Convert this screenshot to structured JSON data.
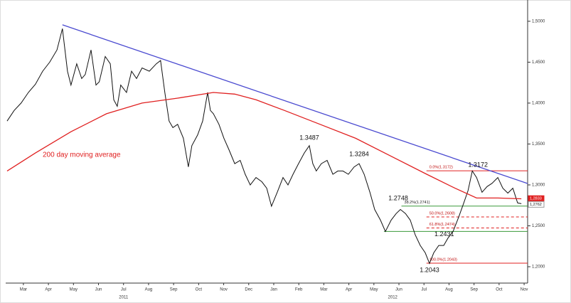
{
  "chart_data": {
    "type": "line",
    "xlim": [
      -0.65,
      20.14
    ],
    "ylim": [
      1.18,
      1.526
    ],
    "xticks": [
      {
        "value": 0,
        "label": "Mar"
      },
      {
        "value": 1,
        "label": "Apr"
      },
      {
        "value": 2,
        "label": "May"
      },
      {
        "value": 3,
        "label": "Jun"
      },
      {
        "value": 4,
        "label": "Jul"
      },
      {
        "value": 5,
        "label": "Aug"
      },
      {
        "value": 6,
        "label": "Sep"
      },
      {
        "value": 7,
        "label": "Oct"
      },
      {
        "value": 8,
        "label": "Nov"
      },
      {
        "value": 9,
        "label": "Dec"
      },
      {
        "value": 10,
        "label": "Jan"
      },
      {
        "value": 11,
        "label": "Feb"
      },
      {
        "value": 12,
        "label": "Mar"
      },
      {
        "value": 13,
        "label": "Apr"
      },
      {
        "value": 14,
        "label": "May"
      },
      {
        "value": 15,
        "label": "Jun"
      },
      {
        "value": 16,
        "label": "Jul"
      },
      {
        "value": 17,
        "label": "Aug"
      },
      {
        "value": 18,
        "label": "Sep"
      },
      {
        "value": 19,
        "label": "Oct"
      },
      {
        "value": 20,
        "label": "Nov"
      }
    ],
    "years": [
      {
        "value": 4,
        "label": "2011"
      },
      {
        "value": 14.75,
        "label": "2012"
      }
    ],
    "yticks": [
      {
        "value": 1.5,
        "label": "1,5000"
      },
      {
        "value": 1.45,
        "label": "1,4500"
      },
      {
        "value": 1.4,
        "label": "1,4000"
      },
      {
        "value": 1.35,
        "label": "1,3500"
      },
      {
        "value": 1.3,
        "label": "1,3000"
      },
      {
        "value": 1.25,
        "label": "1,2500"
      },
      {
        "value": 1.2,
        "label": "1,2000"
      }
    ],
    "series": [
      {
        "color": "#111111",
        "x": [
          -0.65,
          -0.37,
          -0.09,
          0.2,
          0.48,
          0.77,
          1.05,
          1.34,
          1.56,
          1.76,
          1.9,
          2.13,
          2.33,
          2.47,
          2.7,
          2.9,
          3.03,
          3.27,
          3.47,
          3.61,
          3.75,
          3.89,
          4.12,
          4.32,
          4.52,
          4.74,
          5.03,
          5.31,
          5.48,
          5.65,
          5.82,
          5.97,
          6.16,
          6.39,
          6.59,
          6.73,
          6.96,
          7.16,
          7.36,
          7.47,
          7.59,
          7.81,
          8.01,
          8.21,
          8.44,
          8.66,
          8.86,
          9.06,
          9.29,
          9.52,
          9.72,
          9.91,
          10.14,
          10.37,
          10.57,
          10.77,
          10.99,
          11.22,
          11.42,
          11.56,
          11.7,
          11.9,
          12.13,
          12.36,
          12.56,
          12.76,
          12.98,
          13.21,
          13.41,
          13.61,
          13.84,
          14.03,
          14.26,
          14.46,
          14.69,
          14.89,
          15.06,
          15.26,
          15.45,
          15.65,
          15.85,
          16.05,
          16.22,
          16.39,
          16.59,
          16.79,
          16.96,
          17.16,
          17.39,
          17.59,
          17.76,
          17.93,
          18.1,
          18.32,
          18.52,
          18.72,
          18.95,
          19.15,
          19.35,
          19.55,
          19.74,
          19.89
        ],
        "values": [
          1.378,
          1.391,
          1.4,
          1.413,
          1.423,
          1.439,
          1.45,
          1.465,
          1.491,
          1.439,
          1.422,
          1.448,
          1.43,
          1.435,
          1.465,
          1.422,
          1.426,
          1.457,
          1.448,
          1.404,
          1.396,
          1.422,
          1.413,
          1.439,
          1.43,
          1.443,
          1.439,
          1.448,
          1.452,
          1.413,
          1.378,
          1.37,
          1.374,
          1.357,
          1.322,
          1.348,
          1.361,
          1.378,
          1.413,
          1.391,
          1.387,
          1.374,
          1.357,
          1.343,
          1.326,
          1.33,
          1.313,
          1.3,
          1.309,
          1.304,
          1.296,
          1.274,
          1.291,
          1.309,
          1.3,
          1.313,
          1.326,
          1.339,
          1.348,
          1.326,
          1.317,
          1.326,
          1.33,
          1.313,
          1.317,
          1.317,
          1.313,
          1.322,
          1.326,
          1.313,
          1.291,
          1.27,
          1.257,
          1.243,
          1.257,
          1.265,
          1.27,
          1.265,
          1.257,
          1.239,
          1.226,
          1.217,
          1.204,
          1.217,
          1.226,
          1.226,
          1.235,
          1.243,
          1.261,
          1.278,
          1.293,
          1.317,
          1.309,
          1.291,
          1.298,
          1.302,
          1.309,
          1.296,
          1.29,
          1.296,
          1.278,
          1.277
        ]
      },
      {
        "name": "200 day moving average",
        "color": "#e02020",
        "x": [
          -0.65,
          0.48,
          1.9,
          3.32,
          4.74,
          6.16,
          7.59,
          8.44,
          9.29,
          10.43,
          11.85,
          13.27,
          14.69,
          16.11,
          17.24,
          18.1,
          18.95,
          19.89
        ],
        "values": [
          1.317,
          1.339,
          1.365,
          1.387,
          1.4,
          1.406,
          1.413,
          1.411,
          1.404,
          1.391,
          1.374,
          1.357,
          1.335,
          1.313,
          1.296,
          1.284,
          1.284,
          1.283
        ]
      },
      {
        "color": "#4a4ad0",
        "x": [
          1.56,
          20.14
        ],
        "values": [
          1.4957,
          1.3017
        ]
      }
    ],
    "levels": [
      {
        "value": 1.3172,
        "label": "0.0%(1.3172)",
        "color": "#e02020",
        "dash": false,
        "x0": 16.1
      },
      {
        "value": 1.2741,
        "label": "38.2%(1.2741)",
        "color": "#3a9a3a",
        "dash": false,
        "x0": 15.1
      },
      {
        "value": 1.2608,
        "label": "50.0%(1.2608)",
        "color": "#e02020",
        "dash": true,
        "x0": 16.1
      },
      {
        "value": 1.2474,
        "label": "61.8%(1.2474)",
        "color": "#e02020",
        "dash": true,
        "x0": 16.1
      },
      {
        "value": 1.2431,
        "color": "#3a9a3a",
        "dash": false,
        "x0": 14.4
      },
      {
        "value": 1.2043,
        "label": "100.0%(1.2043)",
        "color": "#e02020",
        "dash": false,
        "x0": 16.1
      }
    ],
    "annotations": [
      {
        "label": "1.3487",
        "value": 1.3487,
        "x": 11.42
      },
      {
        "label": "1.3284",
        "value": 1.3284,
        "x": 13.41
      },
      {
        "label": "1.3172",
        "value": 1.3172,
        "x": 17.93
      },
      {
        "label": "1.2748",
        "value": 1.2748,
        "x": 15.2
      },
      {
        "label": "1.2431",
        "value": 1.2431,
        "x": 16.3
      },
      {
        "label": "1.2043",
        "value": 1.2043,
        "x": 16.22
      }
    ],
    "price_tags": [
      {
        "value": 1.2833,
        "label": "1,2833",
        "color": "#e02020"
      },
      {
        "value": 1.2762,
        "label": "1,2762",
        "color": "#ffffff"
      }
    ]
  }
}
